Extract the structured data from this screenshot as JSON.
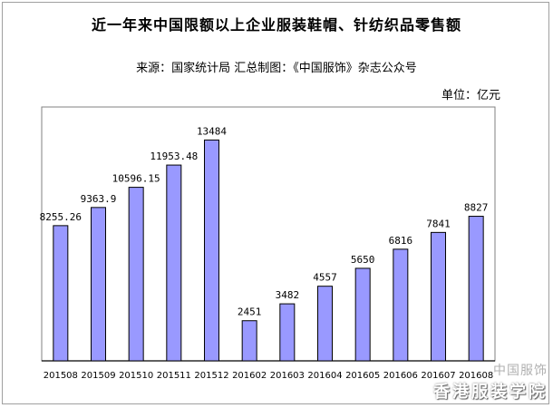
{
  "header": {
    "title": "近一年来中国限额以上企业服装鞋帽、针纺织品零售额",
    "source": "来源：国家统计局   汇总制图：《中国服饰》杂志公众号",
    "unit": "单位：亿元"
  },
  "watermark": {
    "text": "香港服装学院",
    "brand": "中国服饰"
  },
  "colors": {
    "bar_fill": "#9999ff",
    "bar_stroke": "#000000",
    "axis": "#000000",
    "frame": "#a0a0a0"
  },
  "chart_data": {
    "type": "bar",
    "title": "近一年来中国限额以上企业服装鞋帽、针纺织品零售额",
    "xlabel": "",
    "ylabel": "",
    "ylim": [
      0,
      15500
    ],
    "grid": false,
    "legend": "none",
    "categories": [
      "201508",
      "201509",
      "201510",
      "201511",
      "201512",
      "201602",
      "201603",
      "201604",
      "201605",
      "201606",
      "201607",
      "201608"
    ],
    "values": [
      8255.26,
      9363.9,
      10596.15,
      11953.48,
      13484,
      2451,
      3482,
      4557,
      5650,
      6816,
      7841,
      8827
    ],
    "value_labels": [
      "8255.26",
      "9363.9",
      "10596.15",
      "11953.48",
      "13484",
      "2451",
      "3482",
      "4557",
      "5650",
      "6816",
      "7841",
      "8827"
    ]
  }
}
